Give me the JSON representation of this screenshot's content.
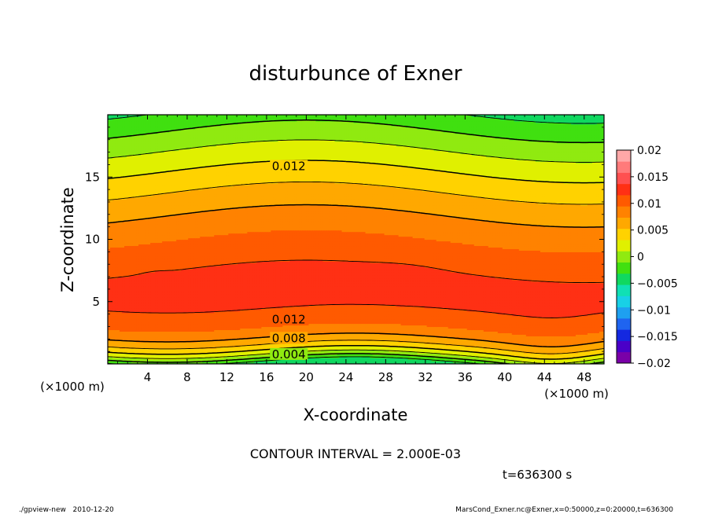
{
  "chart_data": {
    "type": "contour",
    "title": "disturbunce of Exner",
    "xlabel": "X-coordinate",
    "ylabel": "Z-coordinate",
    "x_unit": "(×1000 m)",
    "y_unit": "(×1000 m)",
    "xlim": [
      0,
      50
    ],
    "ylim": [
      0,
      20
    ],
    "x_ticks": [
      4,
      8,
      12,
      16,
      20,
      24,
      28,
      32,
      36,
      40,
      44,
      48
    ],
    "y_ticks": [
      5,
      10,
      15
    ],
    "contour_interval_text": "CONTOUR INTERVAL = 2.000E-03",
    "time_text": "t=636300 s",
    "footer_left": "./gpview-new   2010-12-20",
    "footer_right": "MarsCond_Exner.nc@Exner,x=0:50000,z=0:20000,t=636300",
    "contour_labels": [
      {
        "text": "0.012",
        "x": 16.5,
        "z": 15.8
      },
      {
        "text": "0.012",
        "x": 16.5,
        "z": 3.5
      },
      {
        "text": "0.008",
        "x": 16.5,
        "z": 2.0
      },
      {
        "text": "0.004",
        "x": 16.5,
        "z": 0.7
      }
    ],
    "colorbar": {
      "min": -0.02,
      "max": 0.02,
      "ticks": [
        "0.02",
        "0.015",
        "0.01",
        "0.005",
        "0",
        "−0.005",
        "−0.01",
        "−0.015",
        "−0.02"
      ],
      "colors": [
        "#7a00a8",
        "#4a00c8",
        "#1428e0",
        "#1f64f0",
        "#1ea0f0",
        "#18d0e6",
        "#10e0b4",
        "#10d860",
        "#40e010",
        "#90ea10",
        "#e0f000",
        "#ffd200",
        "#ffa800",
        "#ff8200",
        "#ff5a00",
        "#ff3014",
        "#ff5050",
        "#ff7a7a",
        "#ffa8a8"
      ]
    }
  }
}
